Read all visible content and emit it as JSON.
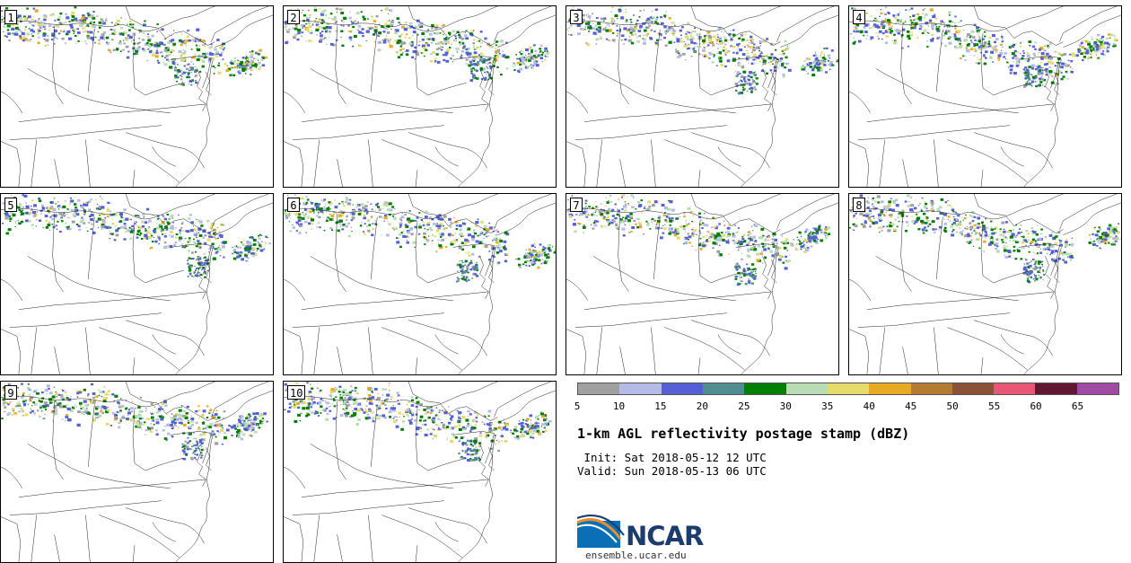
{
  "panels": [
    {
      "label": "1",
      "seed": 11
    },
    {
      "label": "2",
      "seed": 23
    },
    {
      "label": "3",
      "seed": 37
    },
    {
      "label": "4",
      "seed": 41
    },
    {
      "label": "5",
      "seed": 53
    },
    {
      "label": "6",
      "seed": 67
    },
    {
      "label": "7",
      "seed": 71
    },
    {
      "label": "8",
      "seed": 83
    },
    {
      "label": "9",
      "seed": 97
    },
    {
      "label": "10",
      "seed": 101
    }
  ],
  "colorbar": {
    "colors": [
      "#a0a0a0",
      "#b4bbe6",
      "#5560d6",
      "#4f8d90",
      "#007f00",
      "#b8dcb4",
      "#e6db6a",
      "#e8aa22",
      "#b57b30",
      "#8b5238",
      "#ea5675",
      "#621632",
      "#a04aa6"
    ],
    "ticks": [
      "5",
      "10",
      "15",
      "20",
      "25",
      "30",
      "35",
      "40",
      "45",
      "50",
      "55",
      "60",
      "65"
    ]
  },
  "title": "1-km AGL reflectivity postage stamp (dBZ)",
  "init": " Init: Sat 2018-05-12 12 UTC",
  "valid": "Valid: Sun 2018-05-13 06 UTC",
  "logo": {
    "text": "NCAR",
    "website": "ensemble.ucar.edu",
    "colors": {
      "navy": "#1d3c6e",
      "blue": "#0a6fb7",
      "orange": "#e88d2c"
    }
  }
}
